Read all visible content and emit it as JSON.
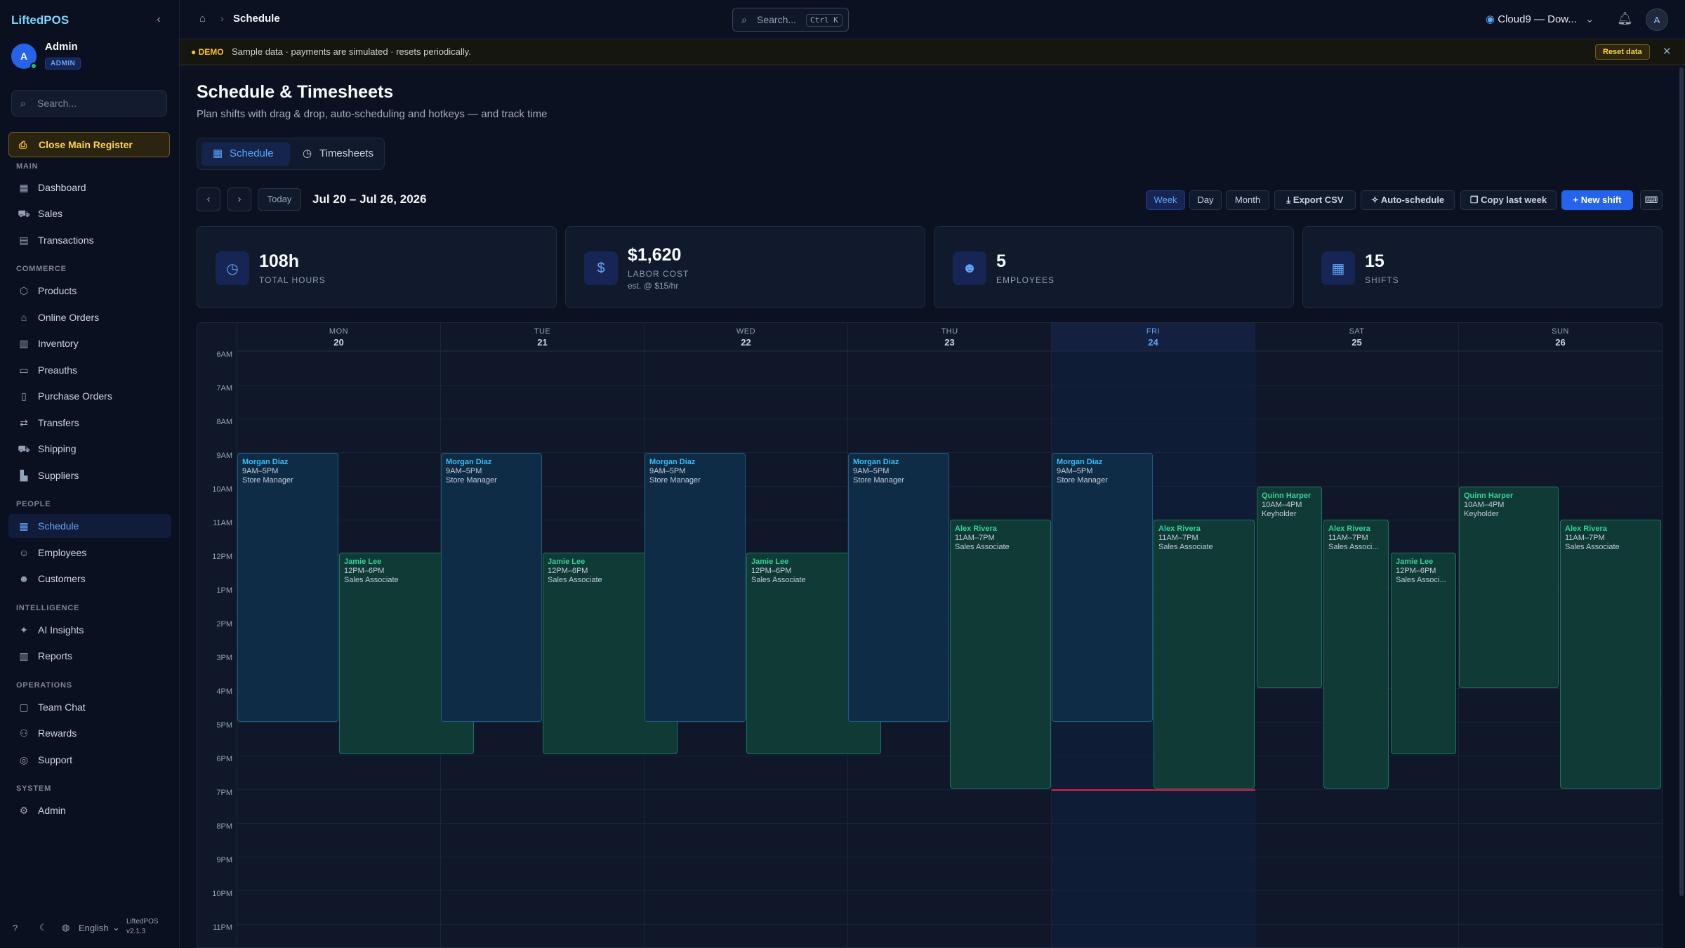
{
  "sidebar": {
    "brand": "LiftedPOS",
    "user": {
      "initial": "A",
      "name": "Admin",
      "role": "ADMIN"
    },
    "search_placeholder": "Search...",
    "register_button": "Close Main Register",
    "sections": {
      "main": "MAIN",
      "commerce": "COMMERCE",
      "people": "PEOPLE",
      "intelligence": "INTELLIGENCE",
      "operations": "OPERATIONS",
      "system": "SYSTEM"
    },
    "items": {
      "dashboard": "Dashboard",
      "sales": "Sales",
      "transactions": "Transactions",
      "products": "Products",
      "online_orders": "Online Orders",
      "inventory": "Inventory",
      "preauths": "Preauths",
      "purchase_orders": "Purchase Orders",
      "transfers": "Transfers",
      "shipping": "Shipping",
      "suppliers": "Suppliers",
      "schedule": "Schedule",
      "employees": "Employees",
      "customers": "Customers",
      "ai_insights": "AI Insights",
      "reports": "Reports",
      "team_chat": "Team Chat",
      "rewards": "Rewards",
      "support": "Support",
      "admin": "Admin"
    },
    "footer": {
      "language": "English",
      "app": "LiftedPOS",
      "version": "v2.1.3"
    }
  },
  "topbar": {
    "breadcrumb": "Schedule",
    "search_label": "Search...",
    "search_kbd": "Ctrl K",
    "location": "Cloud9 — Dow...",
    "avatar": "A"
  },
  "demo_banner": {
    "tag": "DEMO",
    "message": "Sample data · payments are simulated · resets periodically.",
    "reset_label": "Reset data"
  },
  "page": {
    "title": "Schedule & Timesheets",
    "subtitle": "Plan shifts with drag & drop, auto-scheduling and hotkeys — and track time",
    "tabs": {
      "schedule": "Schedule",
      "timesheets": "Timesheets"
    }
  },
  "toolbar": {
    "today": "Today",
    "range": "Jul 20 – Jul 26, 2026",
    "views": {
      "week": "Week",
      "day": "Day",
      "month": "Month"
    },
    "export": "Export CSV",
    "auto": "Auto-schedule",
    "copy": "Copy last week",
    "new": "New shift"
  },
  "stats": [
    {
      "value": "108h",
      "label": "TOTAL HOURS",
      "icon": "clock-icon"
    },
    {
      "value": "$1,620",
      "label": "LABOR COST",
      "note": "est. @ $15/hr",
      "icon": "dollar-icon"
    },
    {
      "value": "5",
      "label": "EMPLOYEES",
      "icon": "users-icon"
    },
    {
      "value": "15",
      "label": "SHIFTS",
      "icon": "calendar-icon"
    }
  ],
  "calendar": {
    "days": [
      {
        "name": "MON",
        "date": "20"
      },
      {
        "name": "TUE",
        "date": "21"
      },
      {
        "name": "WED",
        "date": "22"
      },
      {
        "name": "THU",
        "date": "23"
      },
      {
        "name": "FRI",
        "date": "24"
      },
      {
        "name": "SAT",
        "date": "25"
      },
      {
        "name": "SUN",
        "date": "26"
      }
    ],
    "hours": [
      "6AM",
      "7AM",
      "8AM",
      "9AM",
      "10AM",
      "11AM",
      "12PM",
      "1PM",
      "2PM",
      "3PM",
      "4PM",
      "5PM",
      "6PM",
      "7PM",
      "8PM",
      "9PM",
      "10PM",
      "11PM"
    ],
    "shifts": [
      {
        "name": "Morgan Diaz",
        "time": "9AM–5PM",
        "role": "Store Manager"
      },
      {
        "name": "Jamie Lee",
        "time": "12PM–6PM",
        "role": "Sales Associate"
      },
      {
        "name": "Morgan Diaz",
        "time": "9AM–5PM",
        "role": "Store Manager"
      },
      {
        "name": "Jamie Lee",
        "time": "12PM–6PM",
        "role": "Sales Associate"
      },
      {
        "name": "Morgan Diaz",
        "time": "9AM–5PM",
        "role": "Store Manager"
      },
      {
        "name": "Jamie Lee",
        "time": "12PM–6PM",
        "role": "Sales Associate"
      },
      {
        "name": "Morgan Diaz",
        "time": "9AM–5PM",
        "role": "Store Manager"
      },
      {
        "name": "Alex Rivera",
        "time": "11AM–7PM",
        "role": "Sales Associate"
      },
      {
        "name": "Morgan Diaz",
        "time": "9AM–5PM",
        "role": "Store Manager"
      },
      {
        "name": "Alex Rivera",
        "time": "11AM–7PM",
        "role": "Sales Associate"
      },
      {
        "name": "Quinn Harper",
        "time": "10AM–4PM",
        "role": "Keyholder"
      },
      {
        "name": "Alex Rivera",
        "time": "11AM–7PM",
        "role": "Sales Associ..."
      },
      {
        "name": "Jamie Lee",
        "time": "12PM–6PM",
        "role": "Sales Associ..."
      },
      {
        "name": "Quinn Harper",
        "time": "10AM–4PM",
        "role": "Keyholder"
      },
      {
        "name": "Alex Rivera",
        "time": "11AM–7PM",
        "role": "Sales Associate"
      }
    ]
  }
}
